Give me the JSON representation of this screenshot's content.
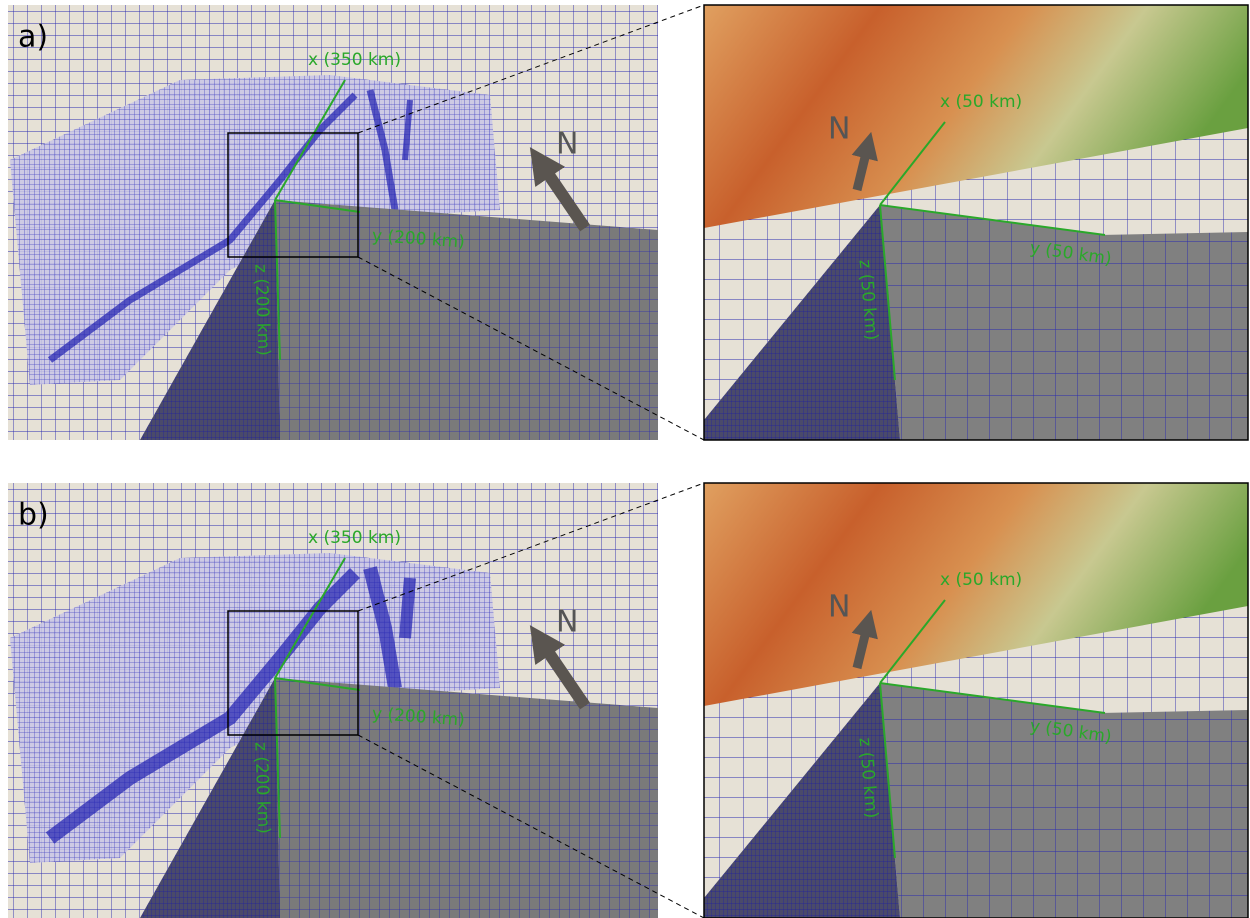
{
  "panels": [
    {
      "label": "a)",
      "overview": {
        "north": "N",
        "axes": {
          "x": "x (350 km)",
          "y": "y (200 km)",
          "z": "z (200 km)"
        }
      },
      "zoom": {
        "north": "N",
        "axes": {
          "x": "x (50 km)",
          "y": "y (50 km)",
          "z": "z (50 km)"
        }
      }
    },
    {
      "label": "b)",
      "overview": {
        "north": "N",
        "axes": {
          "x": "x (350 km)",
          "y": "y (200 km)",
          "z": "z (200 km)"
        }
      },
      "zoom": {
        "north": "N",
        "axes": {
          "x": "x (50 km)",
          "y": "y (50 km)",
          "z": "z (50 km)"
        }
      }
    }
  ]
}
